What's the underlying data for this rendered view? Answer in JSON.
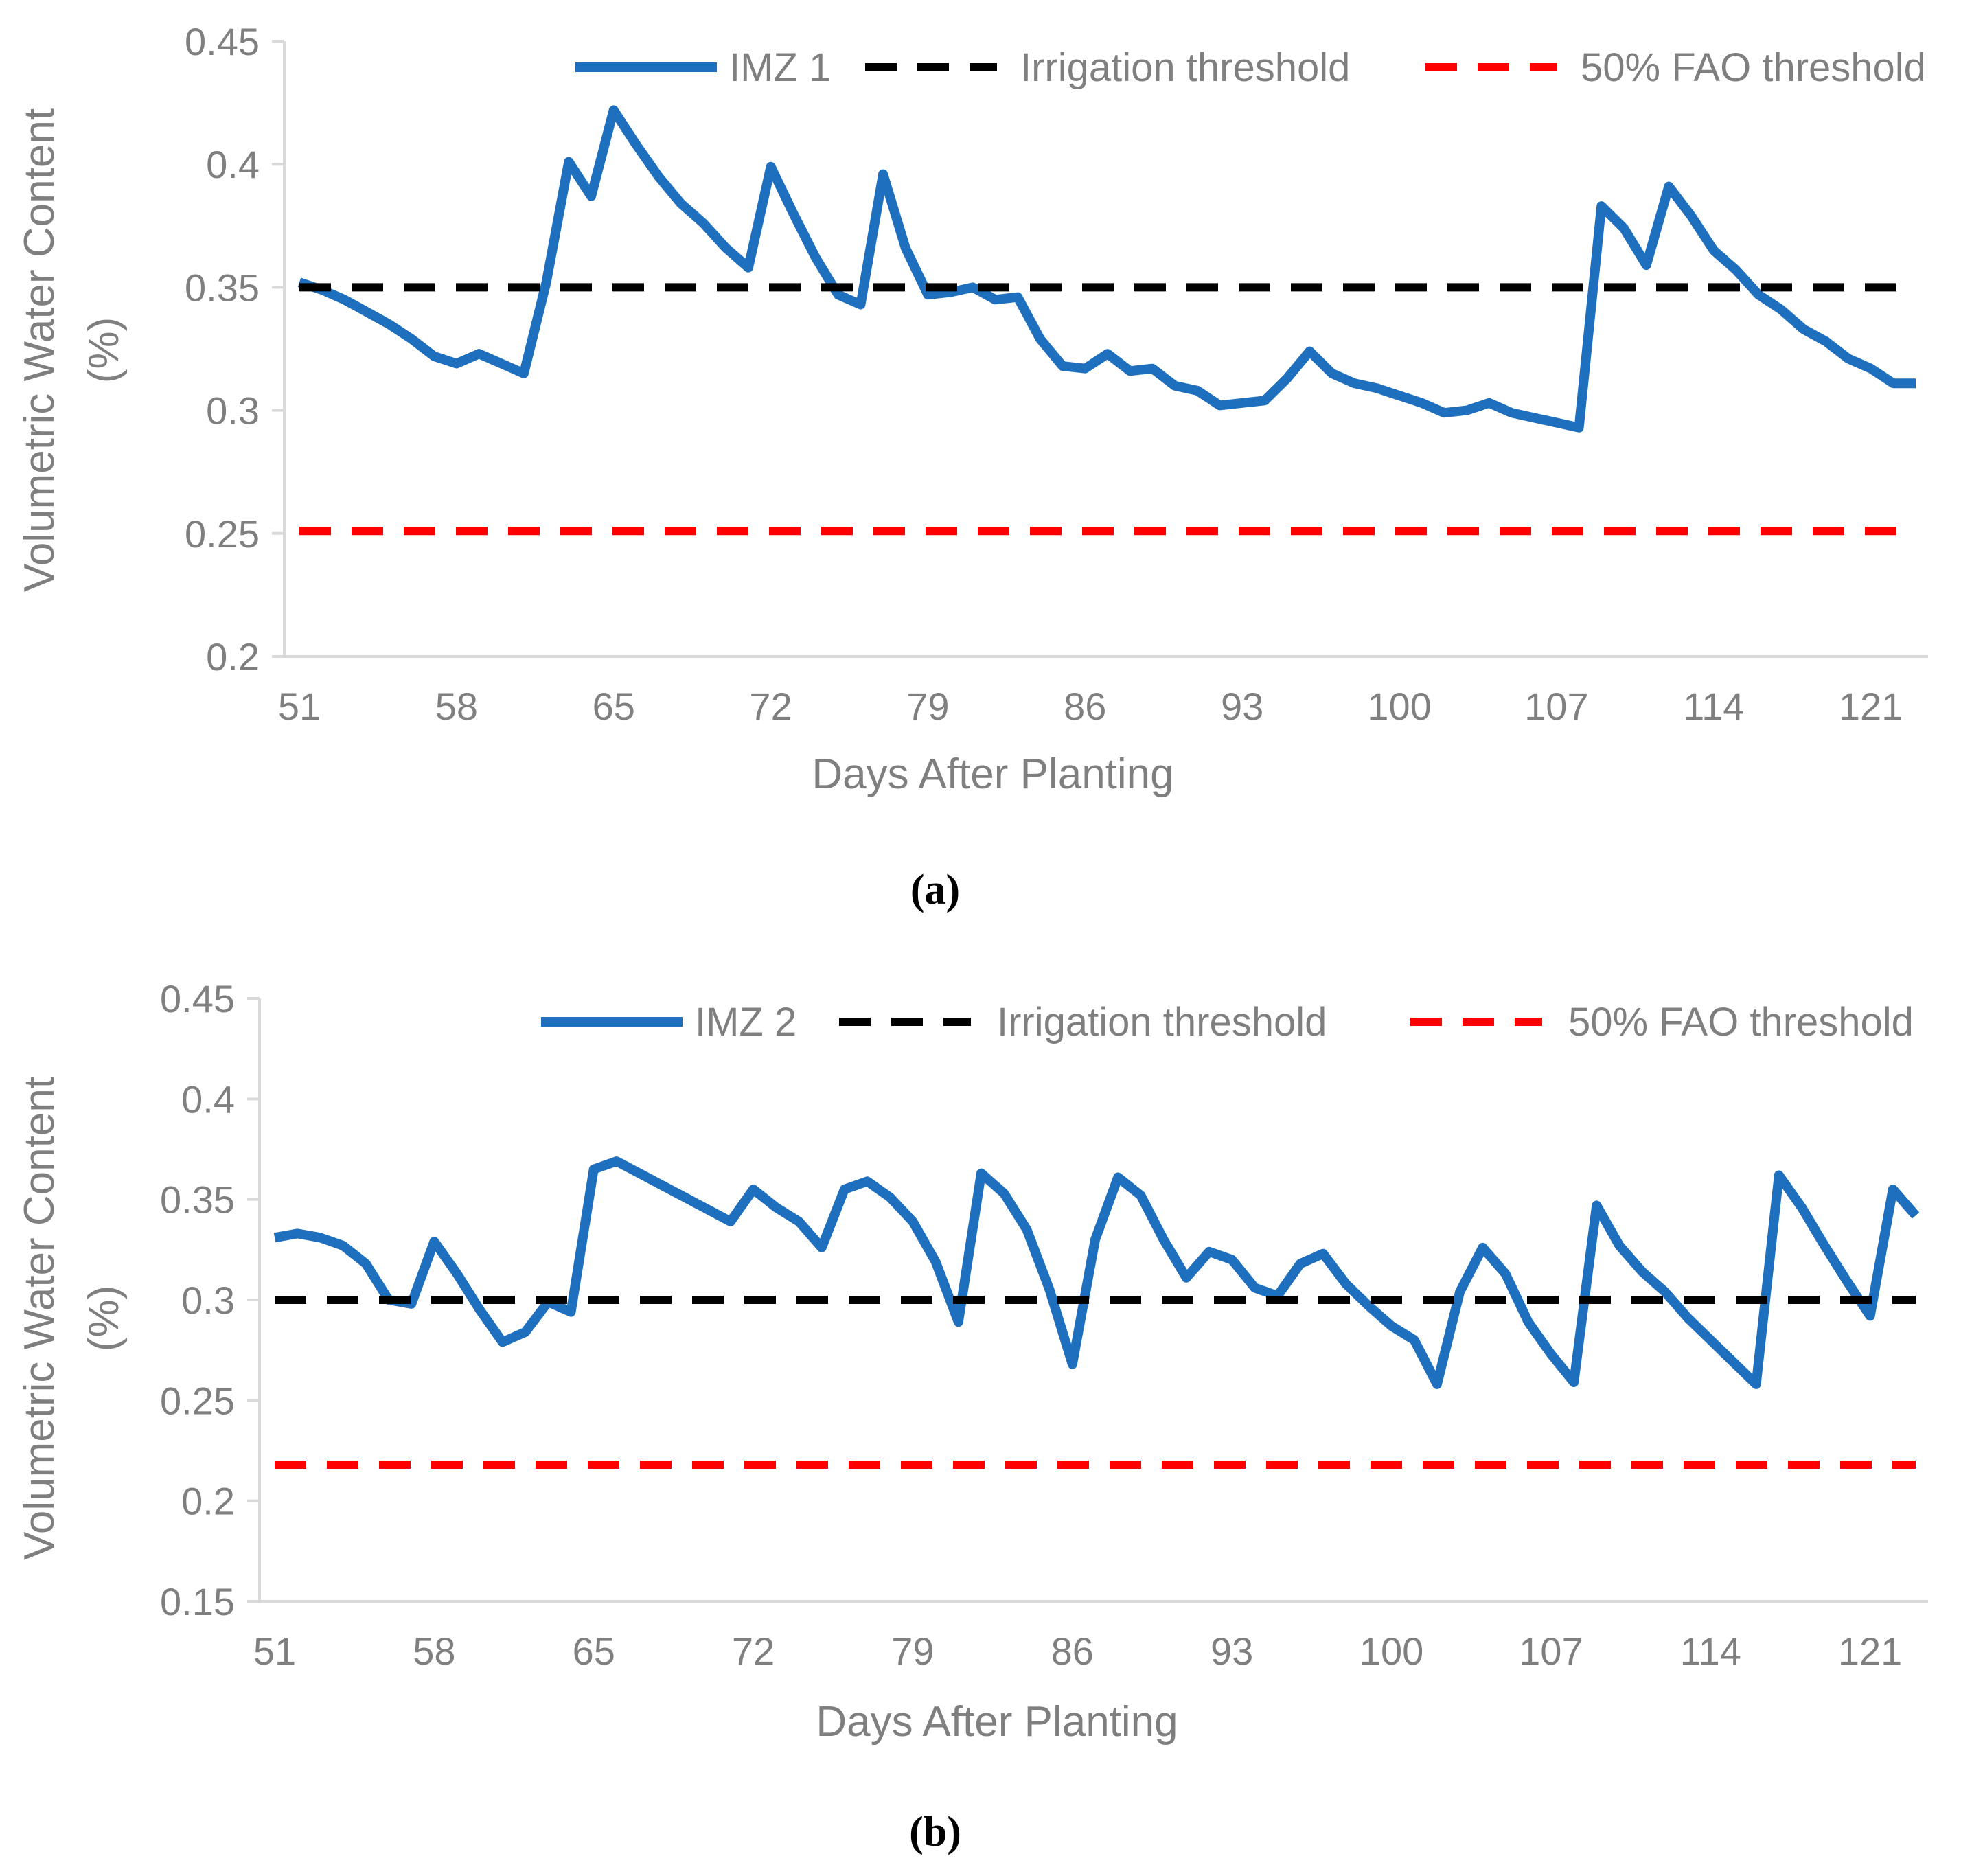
{
  "colors": {
    "series": "#1f6fbf",
    "irrigation": "#000000",
    "fao": "#ff0000",
    "axis": "#d9d9d9",
    "text": "#7f7f7f"
  },
  "chart_data": [
    {
      "type": "line",
      "caption": "(a)",
      "xlabel": "Days After Planting",
      "ylabel_line1": "Volumetric Water Content",
      "ylabel_line2": "(%)",
      "xlim": [
        51,
        123
      ],
      "ylim": [
        0.2,
        0.45
      ],
      "x_ticks": [
        "51",
        "58",
        "65",
        "72",
        "79",
        "86",
        "93",
        "100",
        "107",
        "114",
        "121"
      ],
      "y_ticks": [
        "0.2",
        "0.25",
        "0.3",
        "0.35",
        "0.4",
        "0.45"
      ],
      "legend": [
        "IMZ 1",
        "Irrigation threshold",
        "50% FAO threshold"
      ],
      "series": [
        {
          "name": "IMZ 1",
          "style": "solid",
          "x": [
            51,
            52,
            53,
            54,
            55,
            56,
            57,
            58,
            59,
            60,
            61,
            62,
            63,
            64,
            65,
            66,
            67,
            68,
            69,
            70,
            71,
            72,
            73,
            74,
            75,
            76,
            77,
            78,
            79,
            80,
            81,
            82,
            83,
            84,
            85,
            86,
            87,
            88,
            89,
            90,
            91,
            92,
            93,
            94,
            95,
            96,
            97,
            98,
            99,
            100,
            101,
            102,
            103,
            104,
            105,
            106,
            107,
            108,
            109,
            110,
            111,
            112,
            113,
            114,
            115,
            116,
            117,
            118,
            119,
            120,
            121,
            122,
            123
          ],
          "y": [
            0.352,
            0.349,
            0.345,
            0.34,
            0.335,
            0.329,
            0.322,
            0.319,
            0.323,
            0.319,
            0.315,
            0.352,
            0.401,
            0.387,
            0.422,
            0.408,
            0.395,
            0.384,
            0.376,
            0.366,
            0.358,
            0.399,
            0.38,
            0.362,
            0.347,
            0.343,
            0.396,
            0.366,
            0.347,
            0.348,
            0.35,
            0.345,
            0.346,
            0.329,
            0.318,
            0.317,
            0.323,
            0.316,
            0.317,
            0.31,
            0.308,
            0.302,
            0.303,
            0.304,
            0.313,
            0.324,
            0.315,
            0.311,
            0.309,
            0.306,
            0.303,
            0.299,
            0.3,
            0.303,
            0.299,
            0.297,
            0.295,
            0.293,
            0.383,
            0.374,
            0.359,
            0.391,
            0.379,
            0.365,
            0.357,
            0.347,
            0.341,
            0.333,
            0.328,
            0.321,
            0.317,
            0.311,
            0.311
          ]
        },
        {
          "name": "Irrigation threshold",
          "style": "dashed",
          "x": [
            51,
            123
          ],
          "y": [
            0.35,
            0.35
          ]
        },
        {
          "name": "50% FAO threshold",
          "style": "dashed",
          "x": [
            51,
            123
          ],
          "y": [
            0.251,
            0.251
          ]
        }
      ]
    },
    {
      "type": "line",
      "caption": "(b)",
      "xlabel": "Days After Planting",
      "ylabel_line1": "Volumetric Water Content",
      "ylabel_line2": "(%)",
      "xlim": [
        51,
        123
      ],
      "ylim": [
        0.15,
        0.45
      ],
      "x_ticks": [
        "51",
        "58",
        "65",
        "72",
        "79",
        "86",
        "93",
        "100",
        "107",
        "114",
        "121"
      ],
      "y_ticks": [
        "0.15",
        "0.2",
        "0.25",
        "0.3",
        "0.35",
        "0.4",
        "0.45"
      ],
      "legend": [
        "IMZ 2",
        "Irrigation threshold",
        "50% FAO threshold"
      ],
      "series": [
        {
          "name": "IMZ 2",
          "style": "solid",
          "x": [
            51,
            52,
            53,
            54,
            55,
            56,
            57,
            58,
            59,
            60,
            61,
            62,
            63,
            64,
            65,
            66,
            67,
            68,
            69,
            70,
            71,
            72,
            73,
            74,
            75,
            76,
            77,
            78,
            79,
            80,
            81,
            82,
            83,
            84,
            85,
            86,
            87,
            88,
            89,
            90,
            91,
            92,
            93,
            94,
            95,
            96,
            97,
            98,
            99,
            100,
            101,
            102,
            103,
            104,
            105,
            106,
            107,
            108,
            109,
            110,
            111,
            112,
            113,
            114,
            115,
            116,
            117,
            118,
            119,
            120,
            121,
            122,
            123
          ],
          "y": [
            0.331,
            0.333,
            0.331,
            0.327,
            0.318,
            0.3,
            0.298,
            0.329,
            0.313,
            0.295,
            0.279,
            0.284,
            0.299,
            0.294,
            0.365,
            0.369,
            0.363,
            0.357,
            0.351,
            0.345,
            0.339,
            0.355,
            0.346,
            0.339,
            0.326,
            0.355,
            0.359,
            0.351,
            0.339,
            0.319,
            0.289,
            0.363,
            0.353,
            0.335,
            0.305,
            0.268,
            0.33,
            0.361,
            0.352,
            0.33,
            0.311,
            0.324,
            0.32,
            0.306,
            0.302,
            0.318,
            0.323,
            0.308,
            0.297,
            0.287,
            0.28,
            0.258,
            0.304,
            0.326,
            0.313,
            0.289,
            0.273,
            0.259,
            0.347,
            0.327,
            0.314,
            0.304,
            0.291,
            0.28,
            0.269,
            0.258,
            0.362,
            0.346,
            0.327,
            0.309,
            0.292,
            0.355,
            0.342
          ]
        },
        {
          "name": "Irrigation threshold",
          "style": "dashed",
          "x": [
            51,
            123
          ],
          "y": [
            0.3,
            0.3
          ]
        },
        {
          "name": "50% FAO threshold",
          "style": "dashed",
          "x": [
            51,
            123
          ],
          "y": [
            0.218,
            0.218
          ]
        }
      ]
    }
  ]
}
